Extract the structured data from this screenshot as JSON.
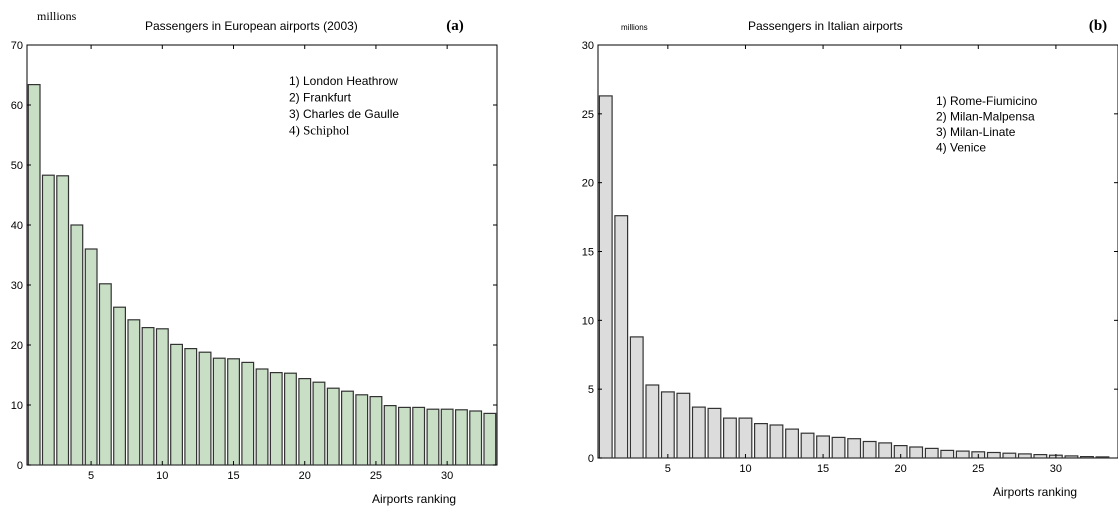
{
  "chart_data": [
    {
      "type": "bar",
      "panel_label": "(a)",
      "title": "Passengers in European airports (2003)",
      "ylabel": "millions",
      "xlabel": "Airports ranking",
      "ylim": [
        0,
        70
      ],
      "xlim": [
        0.5,
        33.5
      ],
      "yticks": [
        0,
        10,
        20,
        30,
        40,
        50,
        60,
        70
      ],
      "xticks": [
        5,
        10,
        15,
        20,
        25,
        30
      ],
      "bar_color": "#c8dfc6",
      "legend": [
        "1) London Heathrow",
        "2) Frankfurt",
        "3) Charles de Gaulle",
        "4) Schiphol"
      ],
      "x": [
        1,
        2,
        3,
        4,
        5,
        6,
        7,
        8,
        9,
        10,
        11,
        12,
        13,
        14,
        15,
        16,
        17,
        18,
        19,
        20,
        21,
        22,
        23,
        24,
        25,
        26,
        27,
        28,
        29,
        30,
        31,
        32,
        33
      ],
      "values": [
        63.4,
        48.3,
        48.2,
        40,
        36,
        30.2,
        26.3,
        24.2,
        22.9,
        22.7,
        20.1,
        19.4,
        18.8,
        17.8,
        17.7,
        17.1,
        16,
        15.4,
        15.3,
        14.4,
        13.8,
        12.8,
        12.3,
        11.7,
        11.4,
        9.9,
        9.6,
        9.6,
        9.3,
        9.3,
        9.2,
        9,
        8.6
      ]
    },
    {
      "type": "bar",
      "panel_label": "(b)",
      "title": "Passengers in Italian airports",
      "ylabel": "millions",
      "xlabel": "Airports ranking",
      "ylim": [
        0,
        30
      ],
      "xlim": [
        0.5,
        34
      ],
      "yticks": [
        0,
        5,
        10,
        15,
        20,
        25,
        30
      ],
      "xticks": [
        5,
        10,
        15,
        20,
        25,
        30
      ],
      "bar_color": "#dcdcdc",
      "legend": [
        "1) Rome-Fiumicino",
        "2) Milan-Malpensa",
        "3) Milan-Linate",
        "4) Venice"
      ],
      "x": [
        1,
        2,
        3,
        4,
        5,
        6,
        7,
        8,
        9,
        10,
        11,
        12,
        13,
        14,
        15,
        16,
        17,
        18,
        19,
        20,
        21,
        22,
        23,
        24,
        25,
        26,
        27,
        28,
        29,
        30,
        31,
        32,
        33
      ],
      "values": [
        26.3,
        17.6,
        8.8,
        5.3,
        4.8,
        4.7,
        3.7,
        3.6,
        2.9,
        2.9,
        2.5,
        2.4,
        2.1,
        1.8,
        1.6,
        1.5,
        1.4,
        1.2,
        1.1,
        0.9,
        0.8,
        0.7,
        0.55,
        0.5,
        0.45,
        0.4,
        0.35,
        0.3,
        0.25,
        0.2,
        0.15,
        0.1,
        0.08
      ]
    }
  ]
}
